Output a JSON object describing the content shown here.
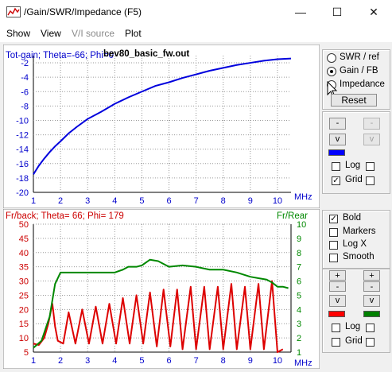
{
  "window": {
    "title": "/Gain/SWR/Impedance (F5)",
    "minimize_glyph": "—",
    "maximize_glyph": "☐",
    "close_glyph": "✕"
  },
  "menu": [
    "Show",
    "View",
    "V/I source",
    "Plot"
  ],
  "top_panel": {
    "radios": [
      {
        "label": "SWR / ref",
        "selected": false
      },
      {
        "label": "Gain / FB",
        "selected": true
      },
      {
        "label": "Impedance",
        "selected": false
      }
    ],
    "reset_label": "Reset",
    "buttons": {
      "minus": "-",
      "v": "v"
    },
    "log_label": "Log",
    "grid_label": "Grid",
    "log_checked": false,
    "grid_checked": true
  },
  "bottom_panel": {
    "checks": [
      {
        "label": "Bold",
        "checked": true
      },
      {
        "label": "Markers",
        "checked": false
      },
      {
        "label": "Log X",
        "checked": false
      },
      {
        "label": "Smooth",
        "checked": false
      }
    ],
    "buttons": {
      "plus": "+",
      "minus": "-",
      "v": "v"
    },
    "log_label": "Log",
    "grid_label": "Grid",
    "log_checked": false,
    "grid_checked": false
  },
  "colors": {
    "gain": "#0000dd",
    "frback": "#dd0000",
    "frrear": "#008800",
    "swatch_blue": "#0000ff",
    "swatch_red": "#ff0000",
    "swatch_green": "#008000"
  },
  "chart_data": [
    {
      "type": "line",
      "title": "Tot-gain; Theta=-66; Phi=0",
      "file_label": "bev80_basic_fw.out",
      "xlabel": "MHz",
      "xlim": [
        1,
        10.5
      ],
      "ylim": [
        -20,
        -1
      ],
      "x_ticks": [
        "1",
        "2",
        "3",
        "4",
        "5",
        "6",
        "7",
        "8",
        "9",
        "10"
      ],
      "y_ticks": [
        "-2",
        "-4",
        "-6",
        "-8",
        "-10",
        "-12",
        "-14",
        "-16",
        "-18",
        "-20"
      ],
      "grid": true,
      "series": [
        {
          "x": [
            1,
            1.2,
            1.4,
            1.6,
            1.8,
            2,
            2.3,
            2.6,
            3,
            3.5,
            4,
            4.5,
            5,
            5.5,
            6,
            6.5,
            7,
            7.5,
            8,
            8.5,
            9,
            9.5,
            10,
            10.5
          ],
          "y": [
            -17.5,
            -16.3,
            -15.3,
            -14.4,
            -13.6,
            -12.9,
            -11.8,
            -10.9,
            -9.8,
            -8.8,
            -7.7,
            -6.8,
            -6.0,
            -5.2,
            -4.7,
            -4.1,
            -3.6,
            -3.1,
            -2.7,
            -2.3,
            -2.0,
            -1.7,
            -1.5,
            -1.4
          ]
        }
      ]
    },
    {
      "type": "line",
      "title": "Fr/back; Theta= 66; Phi= 179",
      "y2_title": "Fr/Rear",
      "xlabel": "MHz",
      "xlim": [
        1,
        10.5
      ],
      "ylim": [
        5,
        50
      ],
      "y2lim": [
        1,
        10
      ],
      "x_ticks": [
        "1",
        "2",
        "3",
        "4",
        "5",
        "6",
        "7",
        "8",
        "9",
        "10"
      ],
      "y_ticks": [
        "50",
        "45",
        "40",
        "35",
        "30",
        "25",
        "20",
        "15",
        "10",
        "5"
      ],
      "y2_ticks": [
        "10",
        "9",
        "8",
        "7",
        "6",
        "5",
        "4",
        "3",
        "2",
        "1"
      ],
      "grid": true,
      "series": [
        {
          "name": "Fr/back",
          "axis": "left",
          "x": [
            1,
            1.2,
            1.4,
            1.55,
            1.7,
            1.8,
            1.9,
            2.1,
            2.3,
            2.55,
            2.8,
            3.05,
            3.3,
            3.55,
            3.8,
            4.05,
            4.3,
            4.55,
            4.8,
            5.05,
            5.3,
            5.55,
            5.8,
            6.05,
            6.3,
            6.5,
            6.8,
            7.0,
            7.3,
            7.5,
            7.8,
            8.0,
            8.3,
            8.5,
            8.8,
            9.0,
            9.3,
            9.5,
            9.8,
            10.0,
            10.2
          ],
          "y": [
            8,
            7.5,
            10,
            15,
            22,
            14,
            9,
            8,
            19,
            8,
            20,
            8,
            21,
            8,
            22,
            8,
            24,
            8,
            25,
            8,
            26,
            7,
            27,
            7,
            27,
            6,
            28,
            6,
            28,
            6,
            28,
            6,
            29,
            6,
            28,
            6,
            29,
            6,
            30,
            5,
            6
          ]
        },
        {
          "name": "Fr/Rear",
          "axis": "right",
          "x": [
            1,
            1.3,
            1.6,
            1.8,
            2.0,
            2.2,
            2.5,
            3.0,
            3.5,
            4.0,
            4.3,
            4.5,
            4.8,
            5.0,
            5.3,
            5.6,
            6.0,
            6.5,
            7.0,
            7.5,
            8.0,
            8.5,
            9.0,
            9.3,
            9.6,
            9.8,
            10.0,
            10.2,
            10.4
          ],
          "y": [
            1.3,
            1.8,
            3.5,
            5.8,
            6.6,
            6.6,
            6.6,
            6.6,
            6.6,
            6.6,
            6.8,
            7.0,
            7.0,
            7.1,
            7.5,
            7.4,
            7.0,
            7.1,
            7.0,
            6.8,
            6.8,
            6.6,
            6.3,
            6.2,
            6.1,
            5.9,
            5.6,
            5.6,
            5.5
          ]
        }
      ]
    }
  ]
}
